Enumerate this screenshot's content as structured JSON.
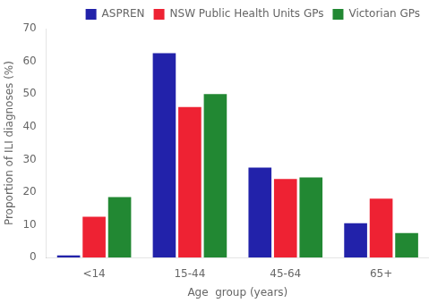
{
  "chart_data": {
    "type": "bar",
    "categories": [
      "<14",
      "15-44",
      "45-64",
      "65+"
    ],
    "series": [
      {
        "name": "ASPREN",
        "values": [
          0.7,
          62.5,
          27.5,
          10.5
        ],
        "color": "#2222aa"
      },
      {
        "name": "NSW Public Health Units GPs",
        "values": [
          12.5,
          46.0,
          24.0,
          18.0
        ],
        "color": "#ee2233"
      },
      {
        "name": "Victorian GPs",
        "values": [
          18.5,
          50.0,
          24.5,
          7.5
        ],
        "color": "#228833"
      }
    ],
    "xlabel": "Age  group (years)",
    "ylabel": "Proportion of ILI diagnoses (%)",
    "ylim": [
      0,
      70
    ],
    "yticks": [
      0,
      10,
      20,
      30,
      40,
      50,
      60,
      70
    ],
    "legend": "upper right",
    "grid": false
  }
}
